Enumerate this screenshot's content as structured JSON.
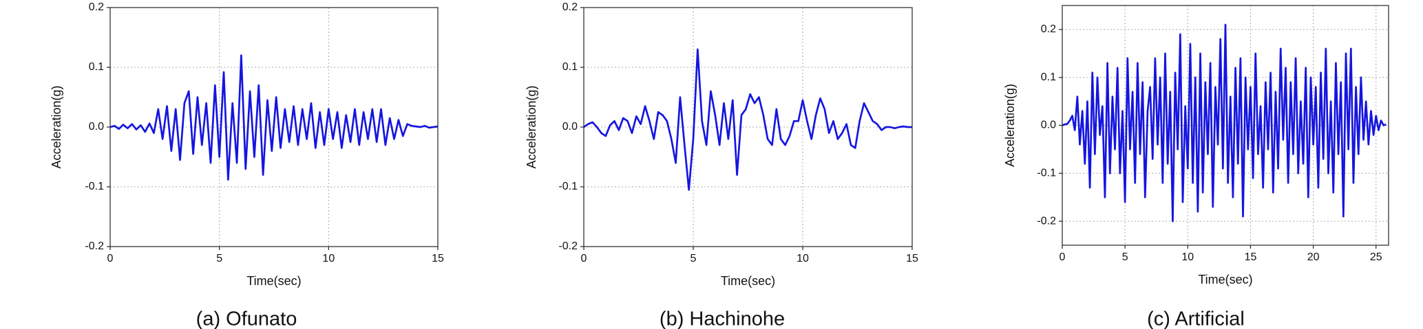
{
  "chart_data": [
    {
      "type": "line",
      "caption": "(a) Ofunato",
      "xlabel": "Time(sec)",
      "ylabel": "Acceleration(g)",
      "color": "#1515e0",
      "grid": true,
      "xlim": [
        0,
        15
      ],
      "xticks": [
        0,
        5,
        10,
        15
      ],
      "ylim": [
        -0.2,
        0.2
      ],
      "yticks": [
        -0.2,
        -0.1,
        {
          "value": 0,
          "label": "0.0"
        },
        0.1,
        0.2
      ],
      "x": [
        0,
        0.2,
        0.4,
        0.6,
        0.8,
        1,
        1.2,
        1.4,
        1.6,
        1.8,
        2,
        2.2,
        2.4,
        2.6,
        2.8,
        3,
        3.2,
        3.4,
        3.6,
        3.8,
        4,
        4.2,
        4.4,
        4.6,
        4.8,
        5,
        5.2,
        5.4,
        5.6,
        5.8,
        6,
        6.2,
        6.4,
        6.6,
        6.8,
        7,
        7.2,
        7.4,
        7.6,
        7.8,
        8,
        8.2,
        8.4,
        8.6,
        8.8,
        9,
        9.2,
        9.4,
        9.6,
        9.8,
        10,
        10.2,
        10.4,
        10.6,
        10.8,
        11,
        11.2,
        11.4,
        11.6,
        11.8,
        12,
        12.2,
        12.4,
        12.6,
        12.8,
        13,
        13.2,
        13.4,
        13.6,
        13.8,
        14,
        14.2,
        14.4,
        14.6,
        14.8,
        15
      ],
      "values": [
        0,
        0.002,
        -0.003,
        0.004,
        -0.002,
        0.005,
        -0.004,
        0.003,
        -0.008,
        0.006,
        -0.01,
        0.03,
        -0.02,
        0.035,
        -0.04,
        0.03,
        -0.055,
        0.04,
        0.06,
        -0.045,
        0.05,
        -0.03,
        0.04,
        -0.06,
        0.07,
        -0.05,
        0.092,
        -0.088,
        0.04,
        -0.06,
        0.12,
        -0.07,
        0.06,
        -0.05,
        0.07,
        -0.08,
        0.045,
        -0.04,
        0.05,
        -0.035,
        0.03,
        -0.025,
        0.035,
        -0.03,
        0.03,
        -0.02,
        0.04,
        -0.035,
        0.025,
        -0.03,
        0.03,
        -0.02,
        0.025,
        -0.035,
        0.02,
        -0.025,
        0.03,
        -0.03,
        0.025,
        -0.02,
        0.03,
        -0.025,
        0.03,
        -0.03,
        0.015,
        -0.02,
        0.012,
        -0.015,
        0.005,
        0.002,
        0.001,
        0,
        0.002,
        -0.001,
        0,
        0.001
      ]
    },
    {
      "type": "line",
      "caption": "(b) Hachinohe",
      "xlabel": "Time(sec)",
      "ylabel": "Acceleration(g)",
      "color": "#1515e0",
      "grid": true,
      "xlim": [
        0,
        15
      ],
      "xticks": [
        0,
        5,
        10,
        15
      ],
      "ylim": [
        -0.2,
        0.2
      ],
      "yticks": [
        -0.2,
        -0.1,
        {
          "value": 0,
          "label": "0.0"
        },
        0.1,
        0.2
      ],
      "x": [
        0,
        0.2,
        0.4,
        0.6,
        0.8,
        1,
        1.2,
        1.4,
        1.6,
        1.8,
        2,
        2.2,
        2.4,
        2.6,
        2.8,
        3,
        3.2,
        3.4,
        3.6,
        3.8,
        4,
        4.2,
        4.4,
        4.6,
        4.8,
        5,
        5.2,
        5.4,
        5.6,
        5.8,
        6,
        6.2,
        6.4,
        6.6,
        6.8,
        7,
        7.2,
        7.4,
        7.6,
        7.8,
        8,
        8.2,
        8.4,
        8.6,
        8.8,
        9,
        9.2,
        9.4,
        9.6,
        9.8,
        10,
        10.2,
        10.4,
        10.6,
        10.8,
        11,
        11.2,
        11.4,
        11.6,
        11.8,
        12,
        12.2,
        12.4,
        12.6,
        12.8,
        13,
        13.2,
        13.4,
        13.6,
        13.8,
        14,
        14.2,
        14.4,
        14.6,
        14.8,
        15
      ],
      "values": [
        0,
        0.005,
        0.008,
        0,
        -0.01,
        -0.015,
        0.003,
        0.01,
        -0.005,
        0.015,
        0.01,
        -0.01,
        0.018,
        0.005,
        0.035,
        0.01,
        -0.02,
        0.025,
        0.02,
        0.01,
        -0.02,
        -0.06,
        0.05,
        -0.03,
        -0.105,
        -0.02,
        0.13,
        0.01,
        -0.03,
        0.06,
        0.02,
        -0.03,
        0.04,
        -0.02,
        0.045,
        -0.08,
        0.02,
        0.03,
        0.055,
        0.04,
        0.05,
        0.02,
        -0.02,
        -0.03,
        0.03,
        -0.02,
        -0.03,
        -0.015,
        0.01,
        0.01,
        0.045,
        0.01,
        -0.02,
        0.02,
        0.048,
        0.03,
        -0.01,
        0.01,
        -0.02,
        -0.01,
        0.005,
        -0.03,
        -0.035,
        0.01,
        0.04,
        0.025,
        0.01,
        0.005,
        -0.005,
        0,
        0,
        -0.002,
        0,
        0.001,
        0,
        0
      ]
    },
    {
      "type": "line",
      "caption": "(c) Artificial",
      "xlabel": "Time(sec)",
      "ylabel": "Acceleration(g)",
      "color": "#1515e0",
      "grid": true,
      "xlim": [
        0,
        26
      ],
      "xticks": [
        0,
        5,
        10,
        15,
        20,
        25
      ],
      "ylim": [
        -0.25,
        0.25
      ],
      "yticks": [
        -0.2,
        -0.1,
        {
          "value": 0,
          "label": "0.0"
        },
        0.1,
        0.2
      ],
      "x": [
        0,
        0.2,
        0.4,
        0.6,
        0.8,
        1,
        1.2,
        1.4,
        1.6,
        1.8,
        2,
        2.2,
        2.4,
        2.6,
        2.8,
        3,
        3.2,
        3.4,
        3.6,
        3.8,
        4,
        4.2,
        4.4,
        4.6,
        4.8,
        5,
        5.2,
        5.4,
        5.6,
        5.8,
        6,
        6.2,
        6.4,
        6.6,
        6.8,
        7,
        7.2,
        7.4,
        7.6,
        7.8,
        8,
        8.2,
        8.4,
        8.6,
        8.8,
        9,
        9.2,
        9.4,
        9.6,
        9.8,
        10,
        10.2,
        10.4,
        10.6,
        10.8,
        11,
        11.2,
        11.4,
        11.6,
        11.8,
        12,
        12.2,
        12.4,
        12.6,
        12.8,
        13,
        13.2,
        13.4,
        13.6,
        13.8,
        14,
        14.2,
        14.4,
        14.6,
        14.8,
        15,
        15.2,
        15.4,
        15.6,
        15.8,
        16,
        16.2,
        16.4,
        16.6,
        16.8,
        17,
        17.2,
        17.4,
        17.6,
        17.8,
        18,
        18.2,
        18.4,
        18.6,
        18.8,
        19,
        19.2,
        19.4,
        19.6,
        19.8,
        20,
        20.2,
        20.4,
        20.6,
        20.8,
        21,
        21.2,
        21.4,
        21.6,
        21.8,
        22,
        22.2,
        22.4,
        22.6,
        22.8,
        23,
        23.2,
        23.4,
        23.6,
        23.8,
        24,
        24.2,
        24.4,
        24.6,
        24.8,
        25,
        25.2,
        25.4,
        25.6,
        25.8
      ],
      "values": [
        0,
        0.002,
        0.003,
        0.01,
        0.02,
        -0.01,
        0.06,
        -0.04,
        0.03,
        -0.08,
        0.05,
        -0.13,
        0.11,
        -0.06,
        0.1,
        -0.02,
        0.04,
        -0.15,
        0.13,
        -0.1,
        0.06,
        -0.05,
        0.12,
        -0.1,
        0.03,
        -0.16,
        0.14,
        -0.05,
        0.07,
        -0.12,
        0.13,
        -0.06,
        0.09,
        -0.15,
        0.03,
        0.08,
        -0.07,
        0.14,
        -0.04,
        0.1,
        -0.12,
        0.15,
        -0.08,
        0.07,
        -0.2,
        0.11,
        -0.05,
        0.19,
        -0.16,
        0.04,
        -0.09,
        0.17,
        -0.12,
        0.1,
        -0.18,
        0.15,
        -0.14,
        0.09,
        -0.06,
        0.13,
        -0.17,
        0.08,
        -0.04,
        0.18,
        -0.09,
        0.21,
        -0.12,
        0.06,
        -0.15,
        0.12,
        -0.08,
        0.14,
        -0.19,
        0.1,
        -0.05,
        0.08,
        -0.11,
        0.15,
        -0.06,
        0.04,
        -0.13,
        0.09,
        -0.05,
        0.11,
        -0.14,
        0.07,
        -0.09,
        0.16,
        -0.03,
        0.12,
        -0.12,
        0.09,
        -0.06,
        0.14,
        -0.1,
        0.05,
        -0.08,
        0.12,
        -0.15,
        0.1,
        -0.04,
        0.08,
        -0.13,
        0.11,
        -0.07,
        0.16,
        -0.1,
        0.05,
        -0.14,
        0.13,
        -0.06,
        0.09,
        -0.19,
        0.15,
        -0.05,
        0.16,
        -0.12,
        0.08,
        -0.06,
        0.1,
        -0.03,
        0.05,
        -0.04,
        0.03,
        -0.02,
        0.02,
        -0.01,
        0.01,
        0,
        0.002
      ]
    }
  ]
}
